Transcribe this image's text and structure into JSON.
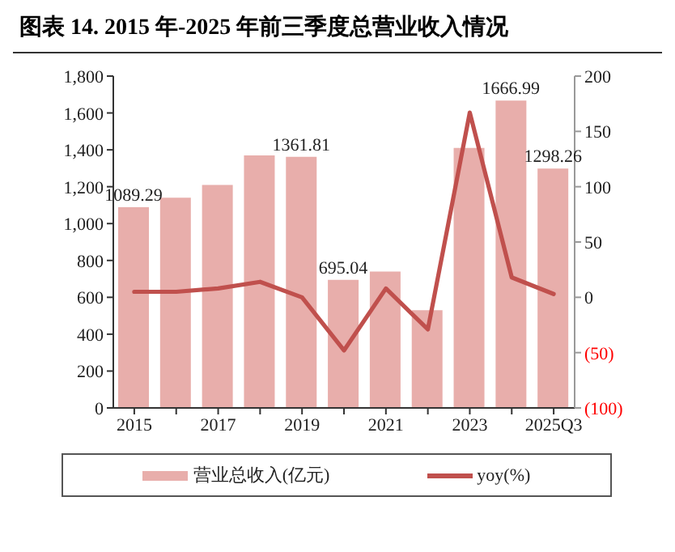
{
  "chart_data": {
    "type": "bar",
    "title": "图表 14.   2015 年-2025 年前三季度总营业收入情况",
    "categories": [
      "2015",
      null,
      "2017",
      null,
      "2019",
      null,
      "2021",
      null,
      "2023",
      null,
      "2025Q3"
    ],
    "series": [
      {
        "name": "营业总收入(亿元)",
        "color": "#e8aeab",
        "values": [
          1089.29,
          1140,
          1210,
          1370,
          1361.81,
          695.04,
          740,
          530,
          1410,
          1666.99,
          1298.26
        ],
        "value_labels": [
          "1089.29",
          null,
          null,
          null,
          "1361.81",
          "695.04",
          null,
          null,
          null,
          "1666.99",
          "1298.26"
        ]
      },
      {
        "name": "yoy(%)",
        "type": "line",
        "axis": "y2",
        "color": "#c0504d",
        "values": [
          5,
          5,
          8,
          14,
          0,
          -48,
          8,
          -29,
          167,
          18,
          3
        ]
      }
    ],
    "ylim": [
      0,
      1800
    ],
    "yticks": [
      0,
      200,
      400,
      600,
      800,
      {
        "value": 1000,
        "label": "1,000"
      },
      {
        "value": 1200,
        "label": "1,200"
      },
      {
        "value": 1400,
        "label": "1,400"
      },
      {
        "value": 1600,
        "label": "1,600"
      },
      {
        "value": 1800,
        "label": "1,800"
      }
    ],
    "y2lim": [
      -100,
      200
    ],
    "y2ticks": [
      {
        "value": -100,
        "label": "(100)"
      },
      {
        "value": -50,
        "label": "(50)"
      },
      0,
      50,
      100,
      150,
      200
    ],
    "legend": "bottom",
    "marker": "none",
    "line_style": "solid"
  }
}
